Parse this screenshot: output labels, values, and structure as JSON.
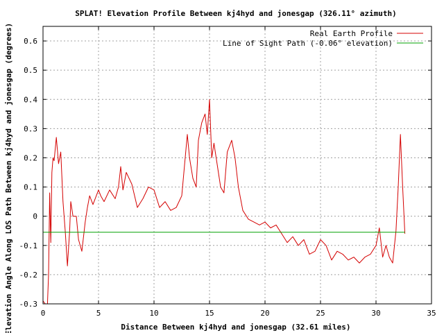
{
  "chart_data": {
    "type": "line",
    "title": "SPLAT! Elevation Profile Between kj4hyd and jonesgap (326.11° azimuth)",
    "xlabel": "Distance Between kj4hyd and jonesgap (32.61 miles)",
    "ylabel": "Elevation Angle Along LOS Path Between kj4hyd and jonesgap (degrees)",
    "xlim": [
      0,
      35
    ],
    "ylim": [
      -0.3,
      0.65
    ],
    "x_ticks": [
      "0",
      "5",
      "10",
      "15",
      "20",
      "25",
      "30",
      "35"
    ],
    "y_ticks": [
      "-0.3",
      "-0.2",
      "-0.1",
      "0",
      "0.1",
      "0.2",
      "0.3",
      "0.4",
      "0.5",
      "0.6"
    ],
    "grid": true,
    "legend_position": "top-right",
    "colors": {
      "terrain": "#d40000",
      "los": "#00a000",
      "grid": "#a0a0a0",
      "frame": "#000000"
    },
    "series": [
      {
        "name": "Real Earth Profile",
        "x": [
          0,
          0.2,
          0.4,
          0.5,
          0.6,
          0.7,
          0.8,
          0.9,
          1.0,
          1.2,
          1.4,
          1.6,
          1.8,
          2.0,
          2.2,
          2.4,
          2.5,
          2.7,
          3.0,
          3.2,
          3.5,
          3.8,
          4.0,
          4.2,
          4.5,
          5.0,
          5.2,
          5.5,
          6.0,
          6.5,
          6.8,
          7.0,
          7.2,
          7.5,
          8.0,
          8.5,
          9.0,
          9.5,
          10.0,
          10.5,
          11.0,
          11.5,
          12.0,
          12.5,
          13.0,
          13.2,
          13.5,
          13.8,
          14.0,
          14.3,
          14.6,
          14.8,
          15.0,
          15.2,
          15.4,
          15.6,
          15.8,
          16.0,
          16.3,
          16.6,
          17.0,
          17.3,
          17.6,
          18.0,
          18.5,
          19.0,
          19.5,
          20.0,
          20.5,
          21.0,
          21.5,
          22.0,
          22.5,
          23.0,
          23.5,
          24.0,
          24.5,
          25.0,
          25.5,
          26.0,
          26.5,
          27.0,
          27.5,
          28.0,
          28.5,
          29.0,
          29.5,
          30.0,
          30.3,
          30.6,
          30.9,
          31.2,
          31.5,
          31.8,
          32.0,
          32.2,
          32.4,
          32.6
        ],
        "y": [
          -0.29,
          -0.3,
          -0.3,
          -0.2,
          0.08,
          -0.09,
          0.15,
          0.2,
          0.19,
          0.27,
          0.18,
          0.22,
          0.05,
          -0.05,
          -0.17,
          -0.05,
          0.05,
          0.0,
          0.0,
          -0.08,
          -0.12,
          -0.02,
          0.03,
          0.07,
          0.04,
          0.09,
          0.07,
          0.05,
          0.09,
          0.06,
          0.1,
          0.17,
          0.09,
          0.15,
          0.11,
          0.03,
          0.06,
          0.1,
          0.09,
          0.03,
          0.05,
          0.02,
          0.03,
          0.07,
          0.28,
          0.2,
          0.13,
          0.1,
          0.26,
          0.32,
          0.35,
          0.28,
          0.4,
          0.2,
          0.25,
          0.2,
          0.15,
          0.1,
          0.08,
          0.22,
          0.26,
          0.2,
          0.1,
          0.02,
          -0.01,
          -0.02,
          -0.03,
          -0.02,
          -0.04,
          -0.03,
          -0.06,
          -0.09,
          -0.07,
          -0.1,
          -0.08,
          -0.13,
          -0.12,
          -0.08,
          -0.1,
          -0.15,
          -0.12,
          -0.13,
          -0.15,
          -0.14,
          -0.16,
          -0.14,
          -0.13,
          -0.1,
          -0.04,
          -0.14,
          -0.1,
          -0.14,
          -0.16,
          -0.05,
          0.1,
          0.28,
          0.1,
          -0.06
        ]
      },
      {
        "name": "Line of Sight Path (-0.06° elevation)",
        "x": [
          0,
          32.61
        ],
        "y": [
          -0.055,
          -0.055
        ]
      }
    ]
  }
}
